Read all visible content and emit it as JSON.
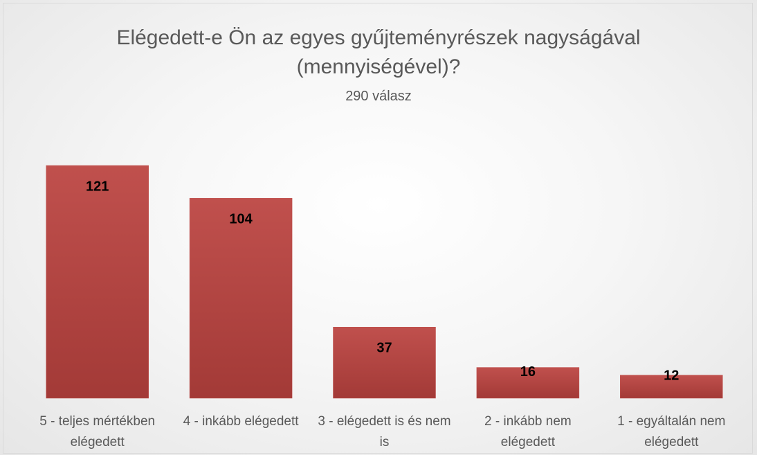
{
  "chart_data": {
    "type": "bar",
    "title": "Elégedett-e Ön az egyes gyűjteményrészek nagyságával (mennyiségével)?",
    "subtitle": "290 válasz",
    "categories": [
      "5 - teljes mértékben elégedett",
      "4 - inkább elégedett",
      "3 - elégedett is és nem is",
      "2 - inkább nem elégedett",
      "1 - egyáltalán nem elégedett"
    ],
    "values": [
      121,
      104,
      37,
      16,
      12
    ],
    "color": "#c0504d"
  }
}
